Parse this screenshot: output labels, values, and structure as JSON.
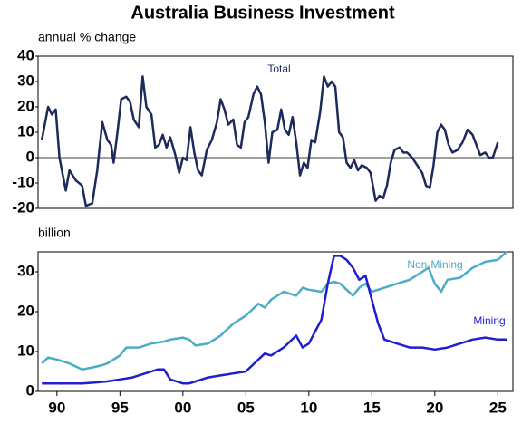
{
  "chart_data": [
    {
      "type": "line",
      "title": "Australia Business Investment",
      "subtitle": "annual % change",
      "xlim": [
        1988.5,
        2026.2
      ],
      "ylim": [
        -20,
        40
      ],
      "yticks": [
        -20,
        -10,
        0,
        10,
        20,
        30,
        40
      ],
      "series": [
        {
          "name": "Total",
          "color": "#1c2a5c",
          "x": [
            1988.8,
            1989.3,
            1989.6,
            1989.9,
            1990.2,
            1990.7,
            1991,
            1991.5,
            1992,
            1992.3,
            1992.8,
            1993.2,
            1993.6,
            1994,
            1994.3,
            1994.5,
            1994.8,
            1995.1,
            1995.5,
            1995.8,
            1996.1,
            1996.5,
            1996.8,
            1997.1,
            1997.5,
            1997.8,
            1998.1,
            1998.4,
            1998.7,
            1999,
            1999.4,
            1999.7,
            2000,
            2000.3,
            2000.6,
            2000.9,
            2001.2,
            2001.5,
            2001.9,
            2002.3,
            2002.7,
            2003,
            2003.3,
            2003.6,
            2004,
            2004.3,
            2004.6,
            2004.9,
            2005.2,
            2005.6,
            2005.9,
            2006.2,
            2006.5,
            2006.8,
            2007.1,
            2007.5,
            2007.8,
            2008.1,
            2008.4,
            2008.7,
            2009,
            2009.3,
            2009.6,
            2009.9,
            2010.2,
            2010.5,
            2010.9,
            2011.2,
            2011.5,
            2011.8,
            2012.1,
            2012.4,
            2012.7,
            2013,
            2013.3,
            2013.6,
            2013.9,
            2014.2,
            2014.6,
            2014.9,
            2015.3,
            2015.6,
            2015.9,
            2016.2,
            2016.5,
            2016.8,
            2017.2,
            2017.5,
            2017.8,
            2018.2,
            2018.6,
            2019,
            2019.3,
            2019.6,
            2019.9,
            2020.2,
            2020.5,
            2020.8,
            2021.1,
            2021.4,
            2021.8,
            2022.2,
            2022.6,
            2023,
            2023.3,
            2023.6,
            2024,
            2024.3,
            2024.6,
            2025
          ],
          "values": [
            7,
            20,
            17,
            19,
            0,
            -13,
            -5,
            -9,
            -11,
            -19,
            -18,
            -5,
            14,
            7,
            5,
            -2,
            10,
            23,
            24,
            22,
            15,
            12,
            32,
            20,
            17,
            4,
            5,
            9,
            4,
            8,
            1,
            -6,
            0,
            -1,
            12,
            2,
            -5,
            -7,
            3,
            7,
            14,
            23,
            19,
            13,
            15,
            5,
            4,
            14,
            16,
            25,
            28,
            25,
            14,
            -2,
            10,
            11,
            19,
            11,
            9,
            16,
            6,
            -7,
            -2,
            -4,
            7,
            6,
            18,
            32,
            28,
            30,
            28,
            10,
            8,
            -2,
            -4,
            -1,
            -5,
            -3,
            -4,
            -6,
            -17,
            -15,
            -16,
            -11,
            -2,
            3,
            4,
            2,
            2,
            0,
            -3,
            -6,
            -11,
            -12,
            -3,
            10,
            13,
            11,
            5,
            2,
            3,
            6,
            11,
            9,
            5,
            1,
            2,
            0,
            0,
            6
          ]
        }
      ]
    },
    {
      "type": "line",
      "subtitle": "billion",
      "xlim": [
        1988.5,
        2026.2
      ],
      "ylim": [
        0,
        35
      ],
      "yticks": [
        0,
        10,
        20,
        30
      ],
      "xticks": [
        {
          "value": 1990,
          "label": "90"
        },
        {
          "value": 1995,
          "label": "95"
        },
        {
          "value": 2000,
          "label": "00"
        },
        {
          "value": 2005,
          "label": "05"
        },
        {
          "value": 2010,
          "label": "10"
        },
        {
          "value": 2015,
          "label": "15"
        },
        {
          "value": 2020,
          "label": "20"
        },
        {
          "value": 2025,
          "label": "25"
        }
      ],
      "series": [
        {
          "name": "Non-Mining",
          "color": "#4bacc6",
          "x": [
            1988.8,
            1989.3,
            1990,
            1991,
            1992,
            1992.8,
            1993.5,
            1994,
            1995,
            1995.5,
            1996.5,
            1997.5,
            1998.5,
            1999,
            2000,
            2000.5,
            2001,
            2002,
            2003,
            2004,
            2005,
            2006,
            2006.5,
            2007,
            2008,
            2009,
            2009.5,
            2010,
            2011,
            2011.5,
            2012,
            2012.5,
            2013,
            2013.5,
            2014,
            2014.5,
            2015,
            2016,
            2017,
            2018,
            2019,
            2019.5,
            2020,
            2020.5,
            2021,
            2022,
            2023,
            2024,
            2025,
            2025.7
          ],
          "values": [
            7,
            8.5,
            8,
            7,
            5.5,
            6,
            6.5,
            7,
            9,
            11,
            11,
            12,
            12.5,
            13,
            13.5,
            13,
            11.5,
            12,
            14,
            17,
            19,
            22,
            21,
            23,
            25,
            24,
            26,
            25.5,
            25,
            27,
            27.5,
            27,
            25.5,
            24,
            26,
            27,
            25,
            26,
            27,
            28,
            30,
            31,
            27,
            25,
            28,
            28.5,
            31,
            32.5,
            33,
            35
          ]
        },
        {
          "name": "Mining",
          "color": "#1f1fd0",
          "x": [
            1988.8,
            1990,
            1992,
            1993,
            1994,
            1995,
            1996,
            1997,
            1998,
            1998.5,
            1999,
            2000,
            2000.5,
            2001,
            2002,
            2003,
            2004,
            2005,
            2006,
            2006.5,
            2007,
            2008,
            2009,
            2009.5,
            2010,
            2011,
            2011.5,
            2012,
            2012.5,
            2013,
            2013.5,
            2014,
            2014.5,
            2015,
            2015.5,
            2016,
            2017,
            2018,
            2019,
            2020,
            2021,
            2022,
            2023,
            2024,
            2025,
            2025.7
          ],
          "values": [
            2,
            2,
            2,
            2.2,
            2.5,
            3,
            3.5,
            4.5,
            5.5,
            5.5,
            3,
            2,
            2,
            2.5,
            3.5,
            4,
            4.5,
            5,
            8,
            9.5,
            9,
            11,
            14,
            11,
            12,
            18,
            27,
            34,
            34,
            33,
            31,
            28,
            29,
            23,
            17,
            13,
            12,
            11,
            11,
            10.5,
            11,
            12,
            13,
            13.5,
            13,
            13
          ]
        }
      ]
    }
  ]
}
